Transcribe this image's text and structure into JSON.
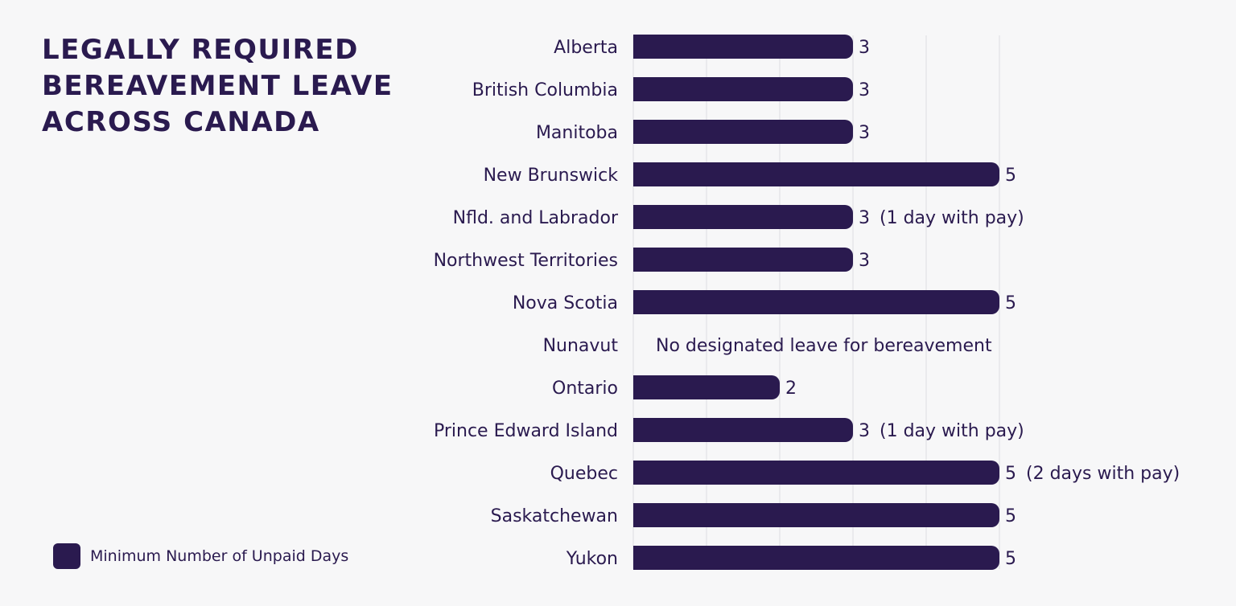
{
  "title": "LEGALLY REQUIRED BEREAVEMENT LEAVE ACROSS CANADA",
  "legend": {
    "label": "Minimum Number of Unpaid Days",
    "color": "#2a1a4f"
  },
  "colors": {
    "bar": "#2a1a4f",
    "text": "#2a1a4f",
    "grid": "#dcdce2",
    "background": "#f7f7f8"
  },
  "chart_data": {
    "type": "bar",
    "orientation": "horizontal",
    "title": "LEGALLY REQUIRED BEREAVEMENT LEAVE ACROSS CANADA",
    "xlabel": "",
    "ylabel": "",
    "xlim": [
      0,
      5
    ],
    "grid": true,
    "legend": "bottom-left",
    "series": [
      {
        "name": "Minimum Number of Unpaid Days"
      }
    ],
    "categories": [
      "Alberta",
      "British Columbia",
      "Manitoba",
      "New Brunswick",
      "Nfld. and Labrador",
      "Northwest Territories",
      "Nova Scotia",
      "Nunavut",
      "Ontario",
      "Prince Edward Island",
      "Quebec",
      "Saskatchewan",
      "Yukon"
    ],
    "values": [
      3,
      3,
      3,
      5,
      3,
      3,
      5,
      null,
      2,
      3,
      5,
      5,
      5
    ],
    "annotations": [
      "",
      "",
      "",
      "",
      "(1 day with pay)",
      "",
      "",
      "No designated leave for bereavement",
      "",
      "(1 day with pay)",
      "(2 days with pay)",
      "",
      ""
    ]
  }
}
